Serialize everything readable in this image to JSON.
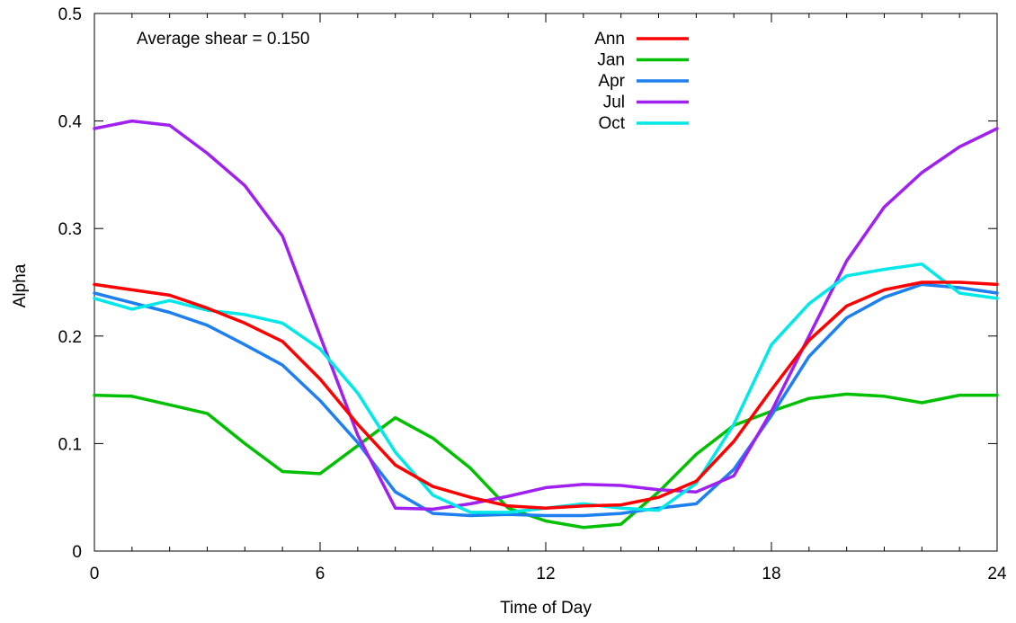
{
  "chart_data": {
    "type": "line",
    "title": "",
    "xlabel": "Time of Day",
    "ylabel": "Alpha",
    "xlim": [
      0,
      24
    ],
    "ylim": [
      0,
      0.5
    ],
    "xticks": [
      0,
      6,
      12,
      18,
      24
    ],
    "xtick_labels": [
      "0",
      "6",
      "12",
      "18",
      "24"
    ],
    "yticks": [
      0,
      0.1,
      0.2,
      0.3,
      0.4,
      0.5
    ],
    "ytick_labels": [
      "0",
      "0.1",
      "0.2",
      "0.3",
      "0.4",
      "0.5"
    ],
    "grid": false,
    "legend_position": "top-center",
    "annotation": "Average shear = 0.150",
    "x": [
      0,
      1,
      2,
      3,
      4,
      5,
      6,
      7,
      8,
      9,
      10,
      11,
      12,
      13,
      14,
      15,
      16,
      17,
      18,
      19,
      20,
      21,
      22,
      23,
      24
    ],
    "series": [
      {
        "name": "Ann",
        "color": "#ff0000",
        "values": [
          0.248,
          0.243,
          0.238,
          0.226,
          0.212,
          0.195,
          0.16,
          0.118,
          0.08,
          0.06,
          0.05,
          0.042,
          0.04,
          0.042,
          0.043,
          0.05,
          0.065,
          0.102,
          0.15,
          0.196,
          0.228,
          0.243,
          0.25,
          0.25,
          0.248
        ]
      },
      {
        "name": "Jan",
        "color": "#00c000",
        "values": [
          0.145,
          0.144,
          0.136,
          0.128,
          0.1,
          0.074,
          0.072,
          0.098,
          0.124,
          0.105,
          0.077,
          0.04,
          0.028,
          0.022,
          0.025,
          0.055,
          0.09,
          0.117,
          0.13,
          0.142,
          0.146,
          0.144,
          0.138,
          0.145,
          0.145
        ]
      },
      {
        "name": "Apr",
        "color": "#1e7ff0",
        "values": [
          0.24,
          0.231,
          0.222,
          0.21,
          0.192,
          0.173,
          0.14,
          0.101,
          0.055,
          0.035,
          0.033,
          0.034,
          0.033,
          0.033,
          0.035,
          0.04,
          0.044,
          0.076,
          0.126,
          0.181,
          0.217,
          0.236,
          0.248,
          0.245,
          0.24
        ]
      },
      {
        "name": "Jul",
        "color": "#a020f0",
        "values": [
          0.393,
          0.4,
          0.396,
          0.37,
          0.34,
          0.293,
          0.2,
          0.108,
          0.04,
          0.039,
          0.044,
          0.051,
          0.059,
          0.062,
          0.061,
          0.057,
          0.055,
          0.07,
          0.13,
          0.2,
          0.27,
          0.32,
          0.352,
          0.376,
          0.393
        ]
      },
      {
        "name": "Oct",
        "color": "#00e8e8",
        "values": [
          0.235,
          0.225,
          0.233,
          0.224,
          0.22,
          0.212,
          0.188,
          0.147,
          0.092,
          0.052,
          0.036,
          0.036,
          0.04,
          0.044,
          0.04,
          0.038,
          0.063,
          0.118,
          0.192,
          0.23,
          0.256,
          0.262,
          0.267,
          0.24,
          0.235
        ]
      }
    ]
  }
}
